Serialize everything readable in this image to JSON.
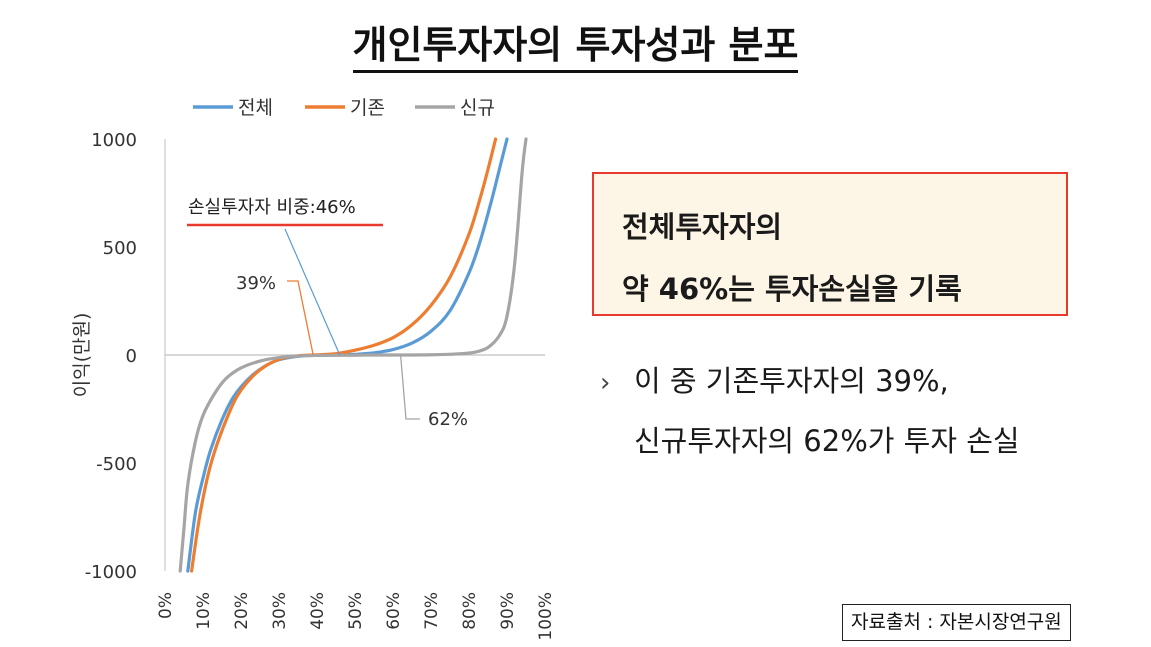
{
  "title": "개인투자자의 투자성과 분포",
  "summary": {
    "line1": "전체투자자의",
    "line2": "약 46%는 투자손실을 기록"
  },
  "note": {
    "bullet_icon": "chevron-right-icon",
    "line1": "이 중 기존투자자의 39%,",
    "line2": "신규투자자의 62%가 투자 손실"
  },
  "source": "자료출처 : 자본시장연구원",
  "chart_data": {
    "type": "line",
    "title": "",
    "xlabel": "",
    "ylabel": "이익(만원)",
    "xlim": [
      0,
      100
    ],
    "ylim": [
      -1000,
      1000
    ],
    "y_ticks": [
      "1000",
      "500",
      "0",
      "-500",
      "-1000"
    ],
    "x_ticks": [
      "0%",
      "10%",
      "20%",
      "30%",
      "40%",
      "50%",
      "60%",
      "70%",
      "80%",
      "90%",
      "100%"
    ],
    "grid": false,
    "legend_position": "top",
    "series": [
      {
        "name": "전체",
        "color": "#5b9bd5",
        "x": [
          6,
          8,
          10,
          12,
          15,
          18,
          22,
          26,
          30,
          35,
          40,
          46,
          50,
          55,
          60,
          65,
          70,
          75,
          80,
          83,
          86,
          88,
          90
        ],
        "y": [
          -1000,
          -730,
          -570,
          -440,
          -300,
          -195,
          -110,
          -55,
          -22,
          -6,
          -1,
          0,
          3,
          10,
          25,
          55,
          110,
          205,
          380,
          530,
          720,
          860,
          1000
        ]
      },
      {
        "name": "기존",
        "color": "#ed7d31",
        "x": [
          7,
          9,
          11,
          13,
          16,
          19,
          23,
          27,
          31,
          35,
          39,
          45,
          50,
          55,
          60,
          65,
          70,
          75,
          80,
          83,
          85,
          87
        ],
        "y": [
          -1000,
          -760,
          -580,
          -450,
          -305,
          -190,
          -100,
          -45,
          -15,
          -4,
          0,
          6,
          22,
          45,
          80,
          140,
          230,
          360,
          560,
          730,
          860,
          1000
        ]
      },
      {
        "name": "신규",
        "color": "#a5a5a5",
        "x": [
          4,
          5,
          6,
          8,
          10,
          13,
          16,
          20,
          25,
          30,
          35,
          40,
          50,
          55,
          62,
          70,
          78,
          82,
          85,
          88,
          90,
          92,
          94,
          95
        ],
        "y": [
          -1000,
          -800,
          -600,
          -400,
          -280,
          -180,
          -110,
          -60,
          -28,
          -12,
          -5,
          -2,
          -1,
          0,
          0,
          1,
          6,
          15,
          35,
          90,
          180,
          420,
          850,
          1000
        ]
      }
    ],
    "annotations": [
      {
        "text": "손실투자자 비중:46%",
        "series": "전체",
        "x": 46
      },
      {
        "text": "39%",
        "series": "기존",
        "x": 39
      },
      {
        "text": "62%",
        "series": "신규",
        "x": 62
      }
    ]
  }
}
